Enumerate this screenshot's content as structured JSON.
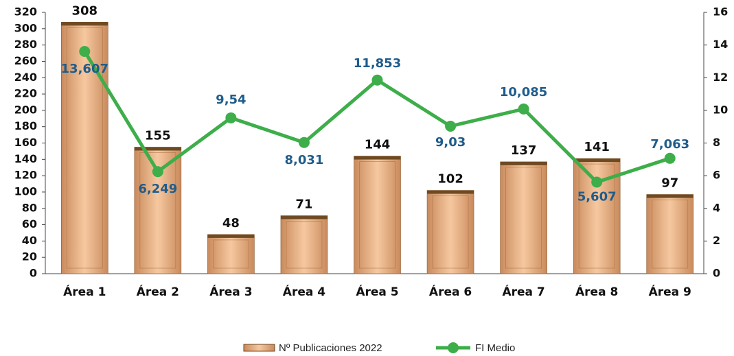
{
  "chart_data": {
    "type": "bar_line",
    "categories": [
      "Área 1",
      "Área 2",
      "Área 3",
      "Área 4",
      "Área 5",
      "Área 6",
      "Área 7",
      "Área 8",
      "Área 9"
    ],
    "series": [
      {
        "name": "Nº Publicaciones 2022",
        "color": "#e89c68",
        "values": [
          308,
          155,
          48,
          71,
          144,
          102,
          137,
          141,
          97
        ]
      },
      {
        "name": "FI Medio",
        "color": "#3dae49",
        "axis": "y2",
        "values": [
          13.607,
          6.249,
          9.54,
          8.031,
          11.853,
          9.03,
          10.085,
          5.607,
          7.063
        ],
        "value_labels": [
          "13,607",
          "6,249",
          "9,54",
          "8,031",
          "11,853",
          "9,03",
          "10,085",
          "5,607",
          "7,063"
        ]
      }
    ],
    "ylim": [
      0,
      320
    ],
    "yticks": [
      0,
      20,
      40,
      60,
      80,
      100,
      120,
      140,
      160,
      180,
      200,
      220,
      240,
      260,
      280,
      300,
      320
    ],
    "y2lim": [
      0,
      16
    ],
    "y2ticks": [
      0,
      2,
      4,
      6,
      8,
      10,
      12,
      14,
      16
    ]
  }
}
